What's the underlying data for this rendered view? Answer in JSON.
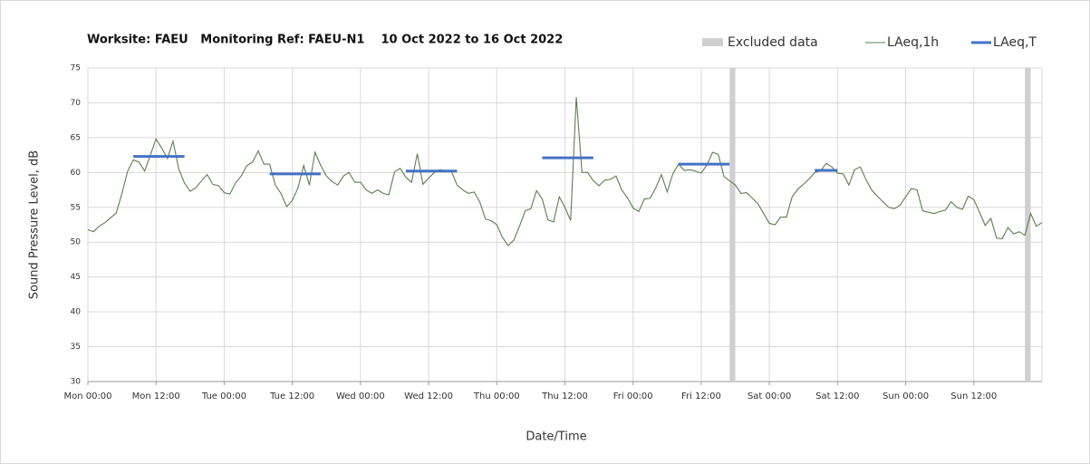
{
  "chart_data": {
    "type": "line",
    "title": "Worksite: FAEU   Monitoring Ref: FAEU-N1    10 Oct 2022 to 16 Oct 2022",
    "x_label": "Date/Time",
    "y_label": "Sound Pressure Level, dB",
    "xlim": [
      0,
      168
    ],
    "xticks": [
      {
        "value": 0,
        "label": "Mon 00:00"
      },
      {
        "value": 12,
        "label": "Mon 12:00"
      },
      {
        "value": 24,
        "label": "Tue 00:00"
      },
      {
        "value": 36,
        "label": "Tue 12:00"
      },
      {
        "value": 48,
        "label": "Wed 00:00"
      },
      {
        "value": 60,
        "label": "Wed 12:00"
      },
      {
        "value": 72,
        "label": "Thu 00:00"
      },
      {
        "value": 84,
        "label": "Thu 12:00"
      },
      {
        "value": 96,
        "label": "Fri 00:00"
      },
      {
        "value": 108,
        "label": "Fri 12:00"
      },
      {
        "value": 120,
        "label": "Sat 00:00"
      },
      {
        "value": 132,
        "label": "Sat 12:00"
      },
      {
        "value": 144,
        "label": "Sun 00:00"
      },
      {
        "value": 156,
        "label": "Sun 12:00"
      }
    ],
    "ylim": [
      30,
      75
    ],
    "yticks": [
      30,
      35,
      40,
      45,
      50,
      55,
      60,
      65,
      70,
      75
    ],
    "grid": true,
    "legend": "top-right",
    "excluded": {
      "name": "Excluded data",
      "color": "#d0d0d0",
      "ranges": [
        [
          113,
          114
        ],
        [
          165,
          166
        ]
      ]
    },
    "series": [
      {
        "name": "LAeq,1h",
        "color": "#5e7d4e",
        "x": [
          0,
          1,
          2,
          3,
          4,
          5,
          6,
          7,
          8,
          9,
          10,
          11,
          12,
          13,
          14,
          15,
          16,
          17,
          18,
          19,
          20,
          21,
          22,
          23,
          24,
          25,
          26,
          27,
          28,
          29,
          30,
          31,
          32,
          33,
          34,
          35,
          36,
          37,
          38,
          39,
          40,
          41,
          42,
          43,
          44,
          45,
          46,
          47,
          48,
          49,
          50,
          51,
          52,
          53,
          54,
          55,
          56,
          57,
          58,
          59,
          60,
          61,
          62,
          63,
          64,
          65,
          66,
          67,
          68,
          69,
          70,
          71,
          72,
          73,
          74,
          75,
          76,
          77,
          78,
          79,
          80,
          81,
          82,
          83,
          84,
          85,
          86,
          87,
          88,
          89,
          90,
          91,
          92,
          93,
          94,
          95,
          96,
          97,
          98,
          99,
          100,
          101,
          102,
          103,
          104,
          105,
          106,
          107,
          108,
          109,
          110,
          111,
          112,
          113,
          114,
          115,
          116,
          117,
          118,
          119,
          120,
          121,
          122,
          123,
          124,
          125,
          126,
          127,
          128,
          129,
          130,
          131,
          132,
          133,
          134,
          135,
          136,
          137,
          138,
          139,
          140,
          141,
          142,
          143,
          144,
          145,
          146,
          147,
          148,
          149,
          150,
          151,
          152,
          153,
          154,
          155,
          156,
          157,
          158,
          159,
          160,
          161,
          162,
          163,
          164,
          165,
          166,
          167,
          168
        ],
        "values": [
          51.8,
          51.5,
          52.3,
          52.8,
          53.5,
          54.2,
          57,
          60.2,
          61.8,
          61.5,
          60.2,
          62.5,
          64.8,
          63.5,
          62,
          64.5,
          60.5,
          58.5,
          57.3,
          57.8,
          58.8,
          59.7,
          58.3,
          58.1,
          57.1,
          56.9,
          58.5,
          59.5,
          61,
          61.5,
          63.1,
          61.2,
          61.2,
          58.2,
          57,
          55.1,
          56,
          57.8,
          61,
          58.2,
          62.9,
          61,
          59.5,
          58.7,
          58.2,
          59.5,
          60,
          58.6,
          58.6,
          57.5,
          57,
          57.5,
          57,
          56.8,
          60.1,
          60.6,
          59.3,
          58.6,
          62.7,
          58.3,
          59.2,
          60,
          60.4,
          60.2,
          60.2,
          58.2,
          57.5,
          57,
          57.2,
          55.8,
          53.3,
          53.1,
          52.5,
          50.7,
          49.5,
          50.3,
          52.3,
          54.5,
          54.8,
          57.4,
          56.2,
          53.2,
          52.9,
          56.5,
          55,
          53.1,
          70.8,
          60,
          60,
          58.8,
          58.1,
          58.9,
          59,
          59.5,
          57.5,
          56.4,
          54.9,
          54.4,
          56.2,
          56.3,
          57.8,
          59.7,
          57.2,
          59.8,
          61.2,
          60.3,
          60.4,
          60.2,
          59.9,
          61.1,
          62.9,
          62.6,
          59.4,
          58.8,
          58.2,
          57,
          57.1,
          56.3,
          55.5,
          54.1,
          52.7,
          52.5,
          53.6,
          53.6,
          56.5,
          57.6,
          58.3,
          59.1,
          60,
          60.2,
          61.3,
          60.8,
          59.9,
          59.8,
          58.2,
          60.4,
          60.8,
          59,
          57.5,
          56.6,
          55.8,
          55,
          54.8,
          55.3,
          56.5,
          57.7,
          57.5,
          54.5,
          54.3,
          54.1,
          54.4,
          54.6,
          55.8,
          55,
          54.7,
          56.6,
          56.1,
          54.3,
          52.4,
          53.4,
          50.6,
          50.5,
          52.1,
          51.2,
          51.5,
          51,
          54.1,
          52.3,
          52.8
        ]
      },
      {
        "name": "LAeq,T",
        "color": "#4472c4",
        "segments": [
          {
            "x": [
              8,
              17
            ],
            "value": 62.3
          },
          {
            "x": [
              32,
              41
            ],
            "value": 59.8
          },
          {
            "x": [
              56,
              65
            ],
            "value": 60.2
          },
          {
            "x": [
              80,
              89
            ],
            "value": 62.1
          },
          {
            "x": [
              104,
              113
            ],
            "value": 61.2
          },
          {
            "x": [
              128,
              132
            ],
            "value": 60.3
          }
        ]
      }
    ]
  }
}
